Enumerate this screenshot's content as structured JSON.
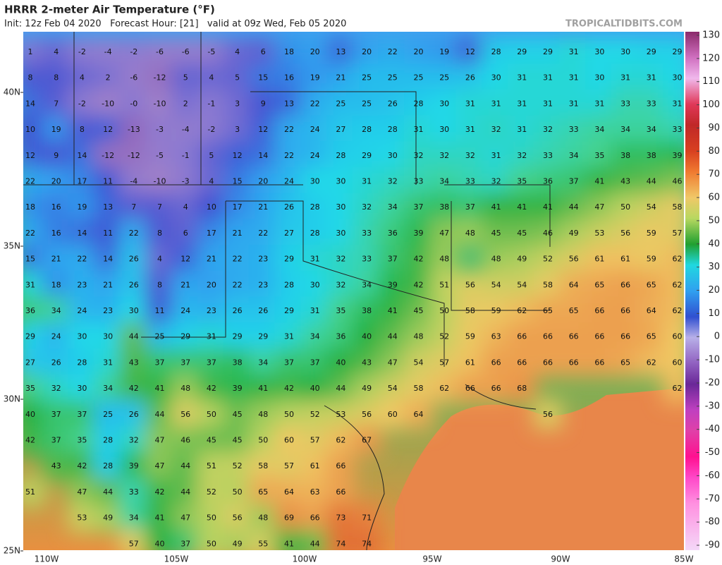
{
  "header": {
    "title": "HRRR 2-meter Air Temperature (°F)",
    "subtitle": "Init: 12z Feb 04 2020   Forecast Hour: [21]   valid at 09z Wed, Feb 05 2020",
    "watermark": "TROPICALTIDBITS.COM"
  },
  "map": {
    "lat_labels": [
      "40N",
      "35N",
      "30N",
      "25N"
    ],
    "lon_labels": [
      "110W",
      "105W",
      "100W",
      "95W",
      "90W",
      "85W"
    ],
    "rows": [
      [
        1,
        4,
        -2,
        -4,
        -2,
        -6,
        -6,
        -5,
        4,
        6,
        18,
        20,
        13,
        20,
        22,
        20,
        19,
        12,
        28,
        29,
        29,
        31,
        30,
        30,
        29,
        29
      ],
      [
        8,
        8,
        4,
        2,
        -6,
        -12,
        5,
        4,
        5,
        15,
        16,
        19,
        21,
        25,
        25,
        25,
        25,
        26,
        30,
        31,
        31,
        31,
        30,
        31,
        31,
        30
      ],
      [
        14,
        7,
        -2,
        -10,
        "-0",
        -10,
        2,
        -1,
        3,
        9,
        13,
        22,
        25,
        25,
        26,
        28,
        30,
        31,
        31,
        31,
        31,
        31,
        31,
        33,
        33,
        31
      ],
      [
        10,
        19,
        8,
        12,
        -13,
        -3,
        -4,
        -2,
        3,
        12,
        22,
        24,
        27,
        28,
        28,
        31,
        30,
        31,
        32,
        31,
        32,
        33,
        34,
        34,
        34,
        33
      ],
      [
        12,
        9,
        14,
        -12,
        -12,
        -5,
        -1,
        5,
        12,
        14,
        22,
        24,
        28,
        29,
        30,
        32,
        32,
        32,
        31,
        32,
        33,
        34,
        35,
        38,
        38,
        39
      ],
      [
        22,
        20,
        17,
        11,
        -4,
        -10,
        -3,
        4,
        15,
        20,
        24,
        30,
        30,
        31,
        32,
        33,
        34,
        33,
        32,
        35,
        36,
        37,
        41,
        43,
        44,
        46
      ],
      [
        18,
        16,
        19,
        13,
        7,
        7,
        4,
        10,
        17,
        21,
        26,
        28,
        30,
        32,
        34,
        37,
        38,
        37,
        41,
        41,
        41,
        44,
        47,
        50,
        54,
        58
      ],
      [
        22,
        16,
        14,
        11,
        22,
        8,
        6,
        17,
        21,
        22,
        27,
        28,
        30,
        33,
        36,
        39,
        47,
        48,
        45,
        45,
        46,
        49,
        53,
        56,
        59,
        57
      ],
      [
        15,
        21,
        22,
        14,
        26,
        4,
        12,
        21,
        22,
        23,
        29,
        31,
        32,
        33,
        37,
        42,
        48,
        null,
        48,
        49,
        52,
        56,
        61,
        61,
        59,
        62
      ],
      [
        31,
        18,
        23,
        21,
        26,
        8,
        21,
        20,
        22,
        23,
        28,
        30,
        32,
        34,
        39,
        42,
        51,
        56,
        54,
        54,
        58,
        64,
        65,
        66,
        65,
        62
      ],
      [
        36,
        34,
        24,
        23,
        30,
        11,
        24,
        23,
        26,
        26,
        29,
        31,
        35,
        38,
        41,
        45,
        50,
        58,
        59,
        62,
        65,
        65,
        66,
        66,
        64,
        62
      ],
      [
        29,
        24,
        30,
        30,
        44,
        25,
        29,
        31,
        29,
        29,
        31,
        34,
        36,
        40,
        44,
        48,
        52,
        59,
        63,
        66,
        66,
        66,
        66,
        66,
        65,
        60
      ],
      [
        27,
        26,
        28,
        31,
        43,
        37,
        37,
        37,
        38,
        34,
        37,
        37,
        40,
        43,
        47,
        54,
        57,
        61,
        66,
        66,
        66,
        66,
        66,
        65,
        62,
        60
      ],
      [
        35,
        32,
        30,
        34,
        42,
        41,
        48,
        42,
        39,
        41,
        42,
        40,
        44,
        49,
        54,
        58,
        62,
        66,
        66,
        68,
        null,
        null,
        null,
        null,
        null,
        62
      ],
      [
        40,
        37,
        37,
        25,
        26,
        44,
        56,
        50,
        45,
        48,
        50,
        52,
        53,
        56,
        60,
        64,
        null,
        null,
        null,
        null,
        56
      ],
      [
        42,
        37,
        35,
        28,
        32,
        47,
        46,
        45,
        45,
        50,
        60,
        57,
        62,
        67
      ],
      [
        null,
        43,
        42,
        28,
        39,
        47,
        44,
        51,
        52,
        58,
        57,
        61,
        66
      ],
      [
        51,
        null,
        47,
        44,
        33,
        42,
        44,
        52,
        50,
        65,
        64,
        63,
        66
      ],
      [
        null,
        null,
        53,
        49,
        34,
        41,
        47,
        50,
        56,
        48,
        69,
        66,
        73,
        71
      ],
      [
        null,
        null,
        null,
        null,
        57,
        40,
        37,
        50,
        49,
        55,
        41,
        44,
        74,
        74
      ]
    ]
  },
  "colorbar": {
    "ticks": [
      130,
      120,
      110,
      100,
      90,
      80,
      70,
      60,
      50,
      40,
      30,
      20,
      10,
      0,
      -10,
      -20,
      -30,
      -40,
      -50,
      -60,
      -70,
      -80,
      -90
    ]
  }
}
